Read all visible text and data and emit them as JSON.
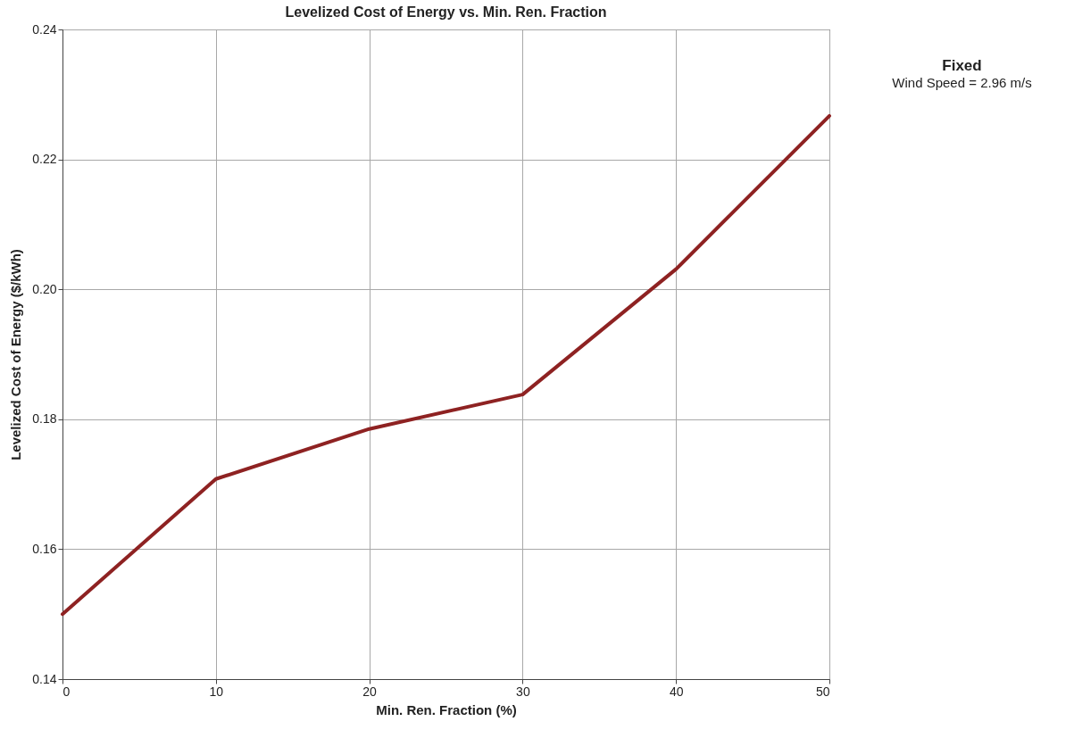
{
  "chart_data": {
    "type": "line",
    "title": "Levelized Cost of Energy vs. Min. Ren. Fraction",
    "xlabel": "Min. Ren. Fraction (%)",
    "ylabel": "Levelized Cost of Energy ($/kWh)",
    "x": [
      0,
      10,
      20,
      30,
      40,
      50
    ],
    "series": [
      {
        "color": "#8e2222",
        "values": [
          0.15,
          0.1708,
          0.1785,
          0.1838,
          0.2031,
          0.2267
        ]
      }
    ],
    "xlim": [
      0,
      50
    ],
    "xticks": [
      0,
      10,
      20,
      30,
      40,
      50
    ],
    "ylim": [
      0.14,
      0.24
    ],
    "yticks": [
      {
        "value": 0.14,
        "label": "0.14"
      },
      {
        "value": 0.16,
        "label": "0.16"
      },
      {
        "value": 0.18,
        "label": "0.18"
      },
      {
        "value": 0.2,
        "label": "0.20"
      },
      {
        "value": 0.22,
        "label": "0.22"
      },
      {
        "value": 0.24,
        "label": "0.24"
      }
    ],
    "grid": true,
    "marker": "none",
    "line_style": "solid",
    "annotations": [
      "Fixed",
      "Wind Speed = 2.96 m/s"
    ]
  }
}
